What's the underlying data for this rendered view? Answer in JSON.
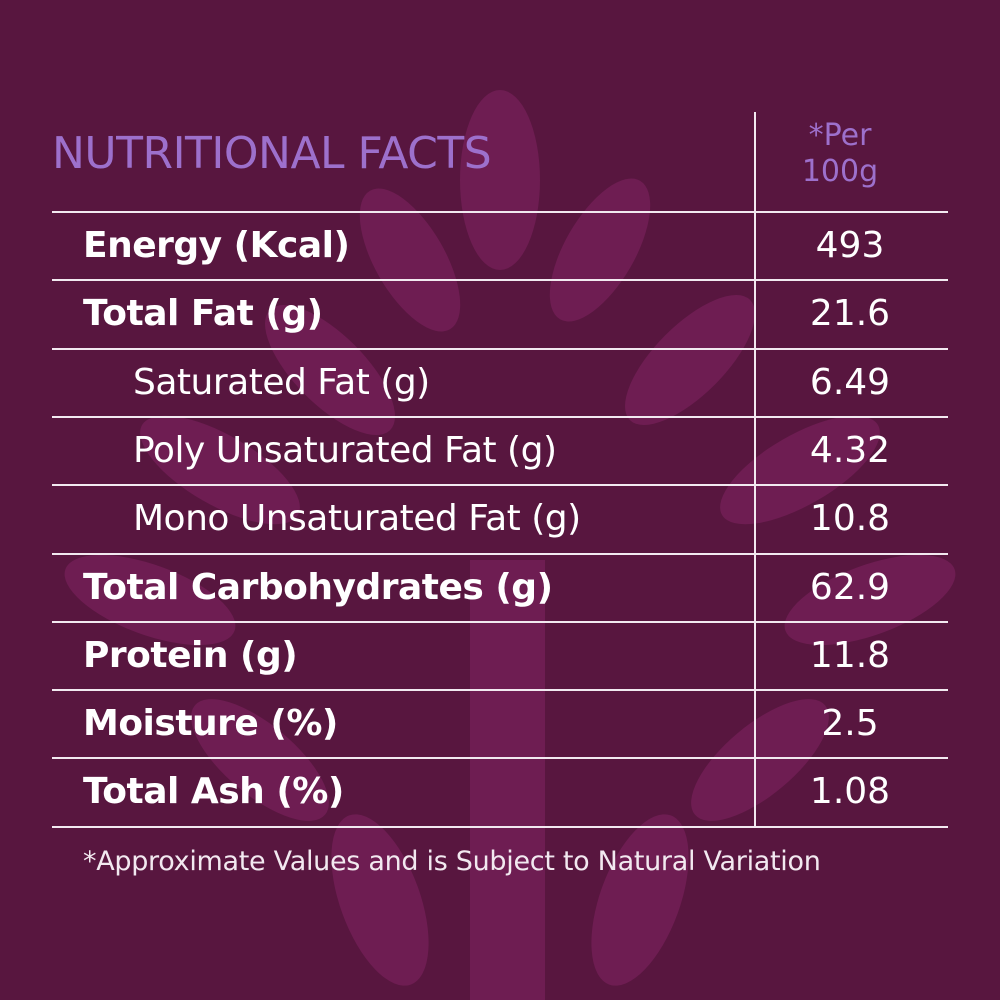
{
  "header": {
    "title": "NUTRITIONAL FACTS",
    "column": "*Per 100g"
  },
  "table": {
    "rows": [
      [
        "Energy (Kcal)",
        493
      ],
      [
        "Total Fat (g)",
        21.6
      ],
      [
        "Saturated Fat (g)",
        6.49
      ],
      [
        "Poly Unsaturated Fat (g)",
        4.32
      ],
      [
        "Mono Unsaturated Fat (g)",
        10.8
      ],
      [
        "Total Carbohydrates (g)",
        62.9
      ],
      [
        "Protein (g)",
        11.8
      ],
      [
        "Moisture (%)",
        2.5
      ],
      [
        "Total Ash (%)",
        1.08
      ]
    ]
  },
  "footnote": "*Approximate Values and is Subject to Natural Variation"
}
